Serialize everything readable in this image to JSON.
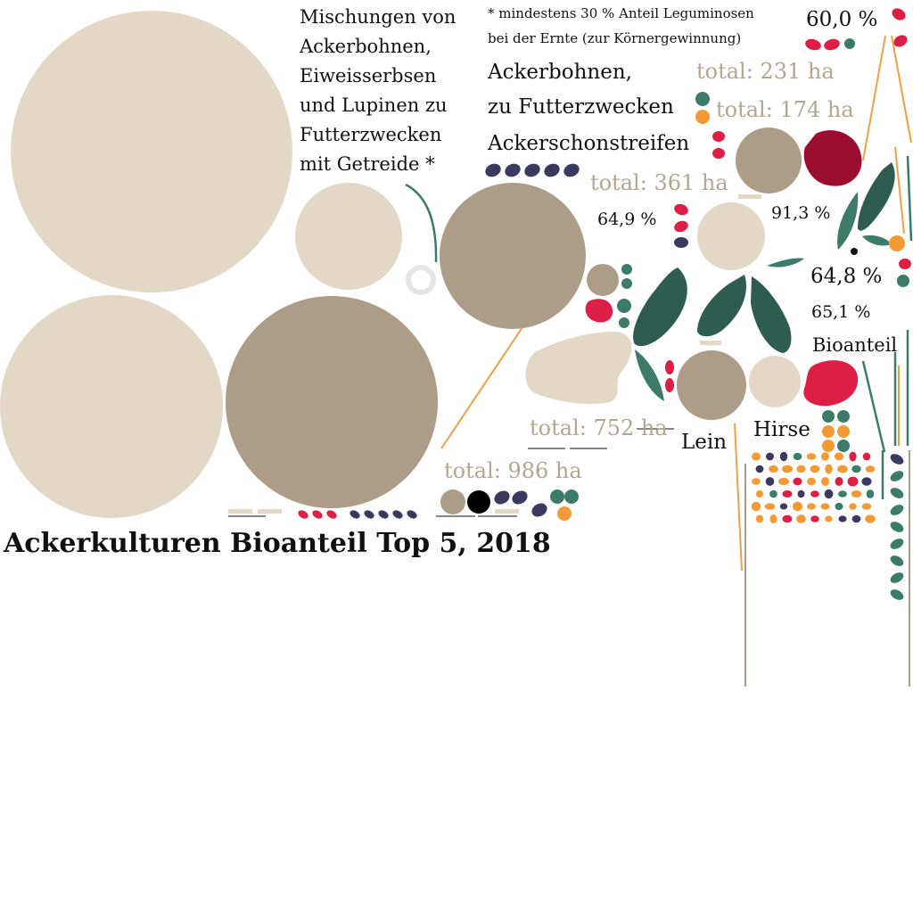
{
  "title": "Ackerkulturen Bioanteil Top 5, 2018",
  "footnote": {
    "line1": "* mindestens 30 % Anteil Leguminosen",
    "line2": "bei der Ernte (zur Körnergewinnung)"
  },
  "legend_label": "Bioanteil",
  "colors": {
    "total_light": "#e3d7c6",
    "organic_dark": "#ad9c87",
    "total_text": "#b4a591",
    "teal": "#2f5c50",
    "teal_light": "#3c7a6a",
    "red": "#dd1f45",
    "crimson": "#9b0d31",
    "navy": "#3a3a60",
    "orange": "#f39a34",
    "leader": "#f0a044"
  },
  "crops": [
    {
      "name_lines": [
        "Mischungen von",
        "Ackerbohnen,",
        "Eiweisserbsen",
        "und Lupinen zu",
        "Futterzwecken",
        "mit Getreide *"
      ],
      "total_label": "total: 986 ha",
      "total_ha": 986,
      "share_label": "64,9 %",
      "organic_share_pct": 64.9
    },
    {
      "name_lines": [
        "Ackerbohnen,",
        "zu Futterzwecken"
      ],
      "total_label": "total: 752 ha",
      "total_ha": 752,
      "share_label": "60,0 %",
      "organic_share_pct": 60.0
    },
    {
      "name_lines": [
        "Ackerschonstreifen"
      ],
      "total_label": "total: 361 ha",
      "total_ha": 361,
      "share_label": "91,3 %",
      "organic_share_pct": 91.3
    },
    {
      "name_lines": [
        "Lein"
      ],
      "total_label": "total: 231 ha",
      "total_ha": 231,
      "share_label": "64,8 %",
      "organic_share_pct": 64.8
    },
    {
      "name_lines": [
        "Hirse"
      ],
      "total_label": "total: 174 ha",
      "total_ha": 174,
      "share_label": "65,1 %",
      "organic_share_pct": 65.1
    }
  ]
}
